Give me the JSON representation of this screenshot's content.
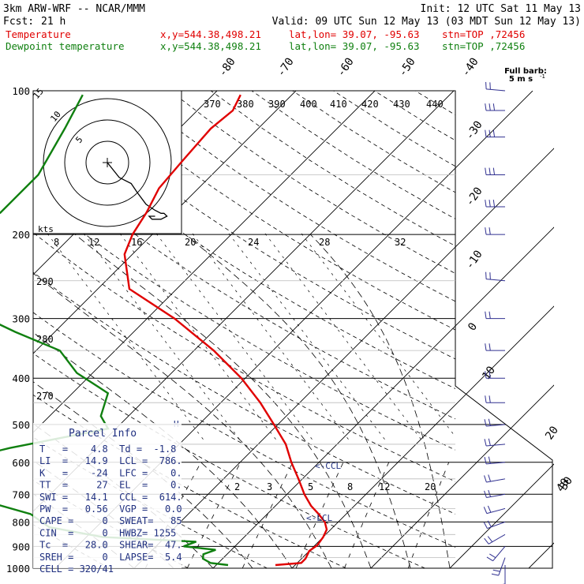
{
  "header": {
    "model": "3km ARW-WRF -- NCAR/MMM",
    "init": "Init: 12 UTC Sat 11 May 13",
    "fcst_label": "Fcst:",
    "fcst_value": "21 h",
    "valid": "Valid: 09 UTC Sun 12 May 13 (03 MDT Sun 12 May 13)",
    "temp_line": {
      "label": "Temperature",
      "xy": "x,y=544.38,498.21",
      "latlon": "lat,lon= 39.07, -95.63",
      "stn": "stn=TOP ,72456"
    },
    "dew_line": {
      "label": "Dewpoint temperature",
      "xy": "x,y=544.38,498.21",
      "latlon": "lat,lon= 39.07, -95.63",
      "stn": "stn=TOP ,72456"
    }
  },
  "colors": {
    "temperature": "#e00000",
    "dewpoint": "#108010",
    "text_red": "#e00000",
    "text_green": "#108010",
    "panel_blue": "#203080",
    "wind_barb": "#303090"
  },
  "barb_legend": {
    "title": "Full barb:",
    "value": "5 m s",
    "exp": "-1"
  },
  "hodograph": {
    "ring_labels": [
      "5",
      "10",
      "15"
    ],
    "units_label": "kts"
  },
  "theta_labels": [
    "370",
    "380",
    "390",
    "400",
    "410",
    "420",
    "430",
    "440"
  ],
  "mixing_ratio_upper": [
    "8",
    "12",
    "16",
    "20",
    "24",
    "28",
    "32"
  ],
  "mixing_ratio_lower": [
    "2",
    "3",
    "5",
    "8",
    "12",
    "20"
  ],
  "theta_e_left": [
    "290",
    "280",
    "270"
  ],
  "top_isotherm_labels": [
    "-80",
    "-70",
    "-60",
    "-50",
    "-40"
  ],
  "right_isotherm_labels": [
    "-30",
    "-20",
    "-10",
    "0",
    "10",
    "20",
    "30",
    "40"
  ],
  "pressure_labels": [
    "100",
    "200",
    "300",
    "400",
    "500",
    "600",
    "700",
    "800",
    "900",
    "1000"
  ],
  "level_markers": {
    "ccl": "<-CCL",
    "lcl": "<-LCL",
    "h_marker": "H"
  },
  "parcel_info": {
    "title": "Parcel Info",
    "rows": [
      "T   =    4.8  Td =  -1.8",
      "LI  =   14.9  LCL =  786.",
      "K   =    -24  LFC =    0.",
      "TT  =     27  EL  =    0.",
      "SWI =   14.1  CCL =  614.",
      "PW  =   0.56  VGP =   0.0",
      "CAPE =     0  SWEAT=   85",
      "CIN  =     0  HWBZ= 1255",
      "Tc  =   28.0  SHEAR=  47.",
      "SREH =     0  LAPSE=  5.4",
      "CELL = 320/41"
    ]
  },
  "chart_data": {
    "type": "line",
    "chart_kind": "skew-T log-P sounding",
    "x_unit": "°C",
    "y_unit": "hPa",
    "y_scale": "log (inverted)",
    "ylim": [
      1000,
      100
    ],
    "series": [
      {
        "name": "Temperature",
        "points": [
          {
            "p": 985,
            "t": 7.5
          },
          {
            "p": 975,
            "t": 10.5
          },
          {
            "p": 955,
            "t": 10.5
          },
          {
            "p": 920,
            "t": 10.0
          },
          {
            "p": 895,
            "t": 10.3
          },
          {
            "p": 860,
            "t": 10.0
          },
          {
            "p": 830,
            "t": 9.5
          },
          {
            "p": 800,
            "t": 8.3
          },
          {
            "p": 770,
            "t": 6.5
          },
          {
            "p": 740,
            "t": 4.5
          },
          {
            "p": 700,
            "t": 2.2
          },
          {
            "p": 650,
            "t": -0.5
          },
          {
            "p": 600,
            "t": -3.5
          },
          {
            "p": 550,
            "t": -6.5
          },
          {
            "p": 500,
            "t": -10.5
          },
          {
            "p": 450,
            "t": -15.0
          },
          {
            "p": 400,
            "t": -20.5
          },
          {
            "p": 350,
            "t": -27.5
          },
          {
            "p": 300,
            "t": -36.5
          },
          {
            "p": 260,
            "t": -46.0
          },
          {
            "p": 220,
            "t": -51.0
          },
          {
            "p": 200,
            "t": -52.5
          },
          {
            "p": 180,
            "t": -53.5
          },
          {
            "p": 160,
            "t": -55.0
          },
          {
            "p": 140,
            "t": -55.5
          },
          {
            "p": 120,
            "t": -56.0
          },
          {
            "p": 110,
            "t": -55.5
          },
          {
            "p": 102,
            "t": -56.5
          }
        ]
      },
      {
        "name": "Dewpoint temperature",
        "points": [
          {
            "p": 985,
            "t": 1.5
          },
          {
            "p": 975,
            "t": -1.0
          },
          {
            "p": 955,
            "t": -2.5
          },
          {
            "p": 935,
            "t": -3.0
          },
          {
            "p": 915,
            "t": -2.0
          },
          {
            "p": 900,
            "t": -6.5
          },
          {
            "p": 880,
            "t": -5.5
          },
          {
            "p": 860,
            "t": -18.0
          },
          {
            "p": 820,
            "t": -26.0
          },
          {
            "p": 770,
            "t": -30.0
          },
          {
            "p": 720,
            "t": -38.0
          },
          {
            "p": 690,
            "t": -48.0
          },
          {
            "p": 650,
            "t": -50.0
          },
          {
            "p": 610,
            "t": -48.0
          },
          {
            "p": 560,
            "t": -41.0
          },
          {
            "p": 510,
            "t": -31.0
          },
          {
            "p": 480,
            "t": -33.5
          },
          {
            "p": 430,
            "t": -35.5
          },
          {
            "p": 390,
            "t": -42.0
          },
          {
            "p": 350,
            "t": -47.0
          },
          {
            "p": 320,
            "t": -55.0
          },
          {
            "p": 290,
            "t": -63.0
          },
          {
            "p": 260,
            "t": -71.0
          },
          {
            "p": 240,
            "t": -74.5
          },
          {
            "p": 200,
            "t": -73.5
          },
          {
            "p": 180,
            "t": -72.0
          },
          {
            "p": 150,
            "t": -72.0
          },
          {
            "p": 120,
            "t": -74.5
          },
          {
            "p": 102,
            "t": -76.5
          }
        ]
      }
    ],
    "wind_profile": [
      {
        "p": 985,
        "dir": 180,
        "speed_ms": 5
      },
      {
        "p": 950,
        "dir": 200,
        "speed_ms": 10
      },
      {
        "p": 900,
        "dir": 220,
        "speed_ms": 12
      },
      {
        "p": 850,
        "dir": 240,
        "speed_ms": 12
      },
      {
        "p": 800,
        "dir": 250,
        "speed_ms": 12
      },
      {
        "p": 750,
        "dir": 255,
        "speed_ms": 12
      },
      {
        "p": 700,
        "dir": 260,
        "speed_ms": 12
      },
      {
        "p": 650,
        "dir": 260,
        "speed_ms": 12
      },
      {
        "p": 600,
        "dir": 265,
        "speed_ms": 12
      },
      {
        "p": 550,
        "dir": 265,
        "speed_ms": 12
      },
      {
        "p": 500,
        "dir": 265,
        "speed_ms": 12
      },
      {
        "p": 450,
        "dir": 270,
        "speed_ms": 12
      },
      {
        "p": 400,
        "dir": 270,
        "speed_ms": 12
      },
      {
        "p": 350,
        "dir": 270,
        "speed_ms": 12
      },
      {
        "p": 300,
        "dir": 270,
        "speed_ms": 10
      },
      {
        "p": 250,
        "dir": 275,
        "speed_ms": 10
      },
      {
        "p": 200,
        "dir": 270,
        "speed_ms": 10
      },
      {
        "p": 175,
        "dir": 270,
        "speed_ms": 15
      },
      {
        "p": 150,
        "dir": 270,
        "speed_ms": 15
      },
      {
        "p": 125,
        "dir": 270,
        "speed_ms": 15
      },
      {
        "p": 110,
        "dir": 270,
        "speed_ms": 15
      },
      {
        "p": 100,
        "dir": 275,
        "speed_ms": 10
      }
    ],
    "hodograph_trace_kts": [
      [
        0,
        0
      ],
      [
        4,
        -5
      ],
      [
        8,
        -7
      ],
      [
        10,
        -10
      ],
      [
        13,
        -14
      ],
      [
        16,
        -16
      ],
      [
        18,
        -17
      ],
      [
        19,
        -17
      ],
      [
        20,
        -18
      ],
      [
        18,
        -19
      ],
      [
        15,
        -19
      ],
      [
        14,
        -18
      ],
      [
        16,
        -18
      ]
    ]
  }
}
